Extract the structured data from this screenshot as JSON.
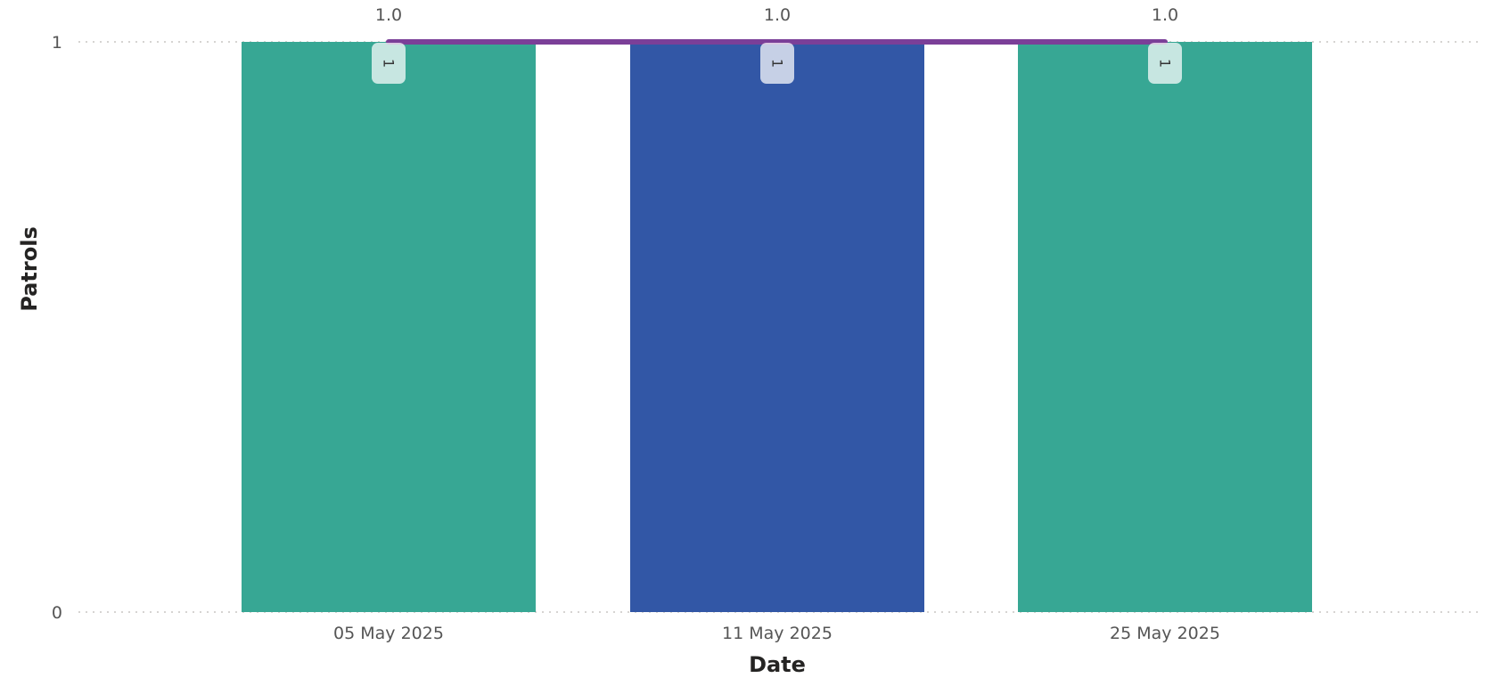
{
  "chart_data": {
    "type": "bar",
    "categories": [
      "05 May 2025",
      "11 May 2025",
      "25 May 2025"
    ],
    "values": [
      1,
      1,
      1
    ],
    "bar_colors": [
      "#37A794",
      "#3257A6",
      "#37A794"
    ],
    "data_labels": [
      "1",
      "1",
      "1"
    ],
    "line_series": {
      "values": [
        1.0,
        1.0,
        1.0
      ],
      "labels": [
        "1.0",
        "1.0",
        "1.0"
      ],
      "color": "#7B3F98"
    },
    "xlabel": "Date",
    "ylabel": "Patrols",
    "yticks": [
      "0",
      "1"
    ],
    "ylim": [
      0,
      1
    ],
    "grid": true
  }
}
